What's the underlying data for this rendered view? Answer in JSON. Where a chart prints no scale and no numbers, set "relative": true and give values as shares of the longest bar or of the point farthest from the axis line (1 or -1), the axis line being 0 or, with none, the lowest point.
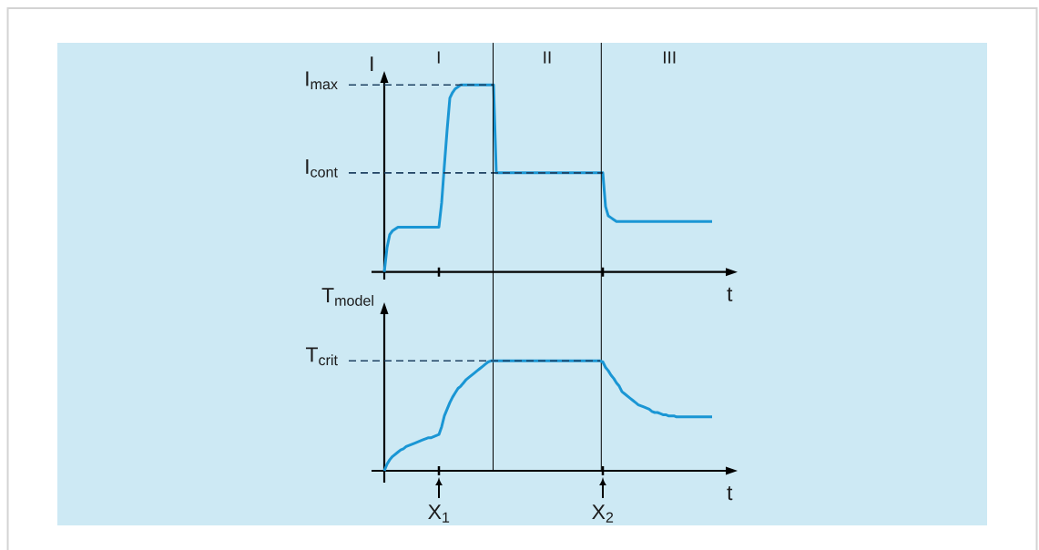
{
  "chart_data": [
    {
      "type": "line",
      "relative": true,
      "ylabel": "I",
      "xlabel": "t",
      "categories": [
        null,
        null,
        null,
        null,
        null,
        null,
        null,
        null,
        null,
        null,
        null,
        null,
        null,
        null,
        null,
        null,
        null,
        null,
        null,
        null,
        null,
        null,
        null,
        null,
        null,
        null,
        null,
        null,
        null,
        null,
        null,
        null,
        null,
        null,
        null,
        null,
        null,
        null,
        null,
        null,
        null,
        null,
        null,
        null,
        null,
        null,
        null,
        null,
        null,
        null,
        null,
        null,
        null,
        null,
        null,
        null,
        null,
        null,
        null,
        null,
        null,
        null,
        null,
        null,
        null,
        null,
        null,
        null,
        null,
        null,
        null,
        null,
        null,
        null,
        null,
        null,
        null,
        null,
        null,
        null,
        null,
        null,
        null,
        null,
        null,
        null,
        null,
        null,
        null,
        null,
        null,
        null,
        null,
        null,
        null,
        null,
        null,
        null,
        null,
        null,
        null,
        null,
        null,
        null,
        null,
        null,
        null,
        null,
        null,
        null,
        null,
        null,
        null,
        null,
        null,
        null,
        null,
        null,
        null,
        null,
        null
      ],
      "series": [
        {
          "color": "#1a96d4",
          "values": [
            0,
            0.13,
            0.2,
            0.22,
            0.23,
            0.24,
            0.24,
            0.24,
            0.24,
            0.24,
            0.24,
            0.24,
            0.24,
            0.24,
            0.24,
            0.24,
            0.24,
            0.24,
            0.24,
            0.24,
            0.24,
            0.37,
            0.57,
            0.76,
            0.93,
            0.96,
            0.98,
            0.99,
            1,
            1,
            1,
            1,
            1,
            1,
            1,
            1,
            1,
            1,
            1,
            1,
            1,
            0.53,
            0.53,
            0.53,
            0.53,
            0.53,
            0.53,
            0.53,
            0.53,
            0.53,
            0.53,
            0.53,
            0.53,
            0.53,
            0.53,
            0.53,
            0.53,
            0.53,
            0.53,
            0.53,
            0.53,
            0.53,
            0.53,
            0.53,
            0.53,
            0.53,
            0.53,
            0.53,
            0.53,
            0.53,
            0.53,
            0.53,
            0.53,
            0.53,
            0.53,
            0.53,
            0.53,
            0.53,
            0.53,
            0.53,
            0.53,
            0.35,
            0.3,
            0.29,
            0.28,
            0.27,
            0.27,
            0.27,
            0.27,
            0.27,
            0.27,
            0.27,
            0.27,
            0.27,
            0.27,
            0.27,
            0.27,
            0.27,
            0.27,
            0.27,
            0.27,
            0.27,
            0.27,
            0.27,
            0.27,
            0.27,
            0.27,
            0.27,
            0.27,
            0.27,
            0.27,
            0.27,
            0.27,
            0.27,
            0.27,
            0.27,
            0.27,
            0.27,
            0.27,
            0.27,
            0.27
          ]
        }
      ],
      "ref_lines": [
        {
          "axis": "y",
          "value": 1,
          "label": "I$_{max}$",
          "color": "#1f4263",
          "line_style": "dashed"
        },
        {
          "axis": "y",
          "value": 0.53,
          "label": "I$_{cont}$",
          "color": "#1f4263",
          "line_style": "dashed"
        }
      ],
      "annotations": [
        "I",
        "II",
        "III"
      ]
    },
    {
      "type": "line",
      "relative": true,
      "ylabel": "T$_{model}$",
      "xlabel": "t",
      "tick_labels": "x",
      "categories": [
        null,
        null,
        null,
        null,
        null,
        null,
        null,
        null,
        null,
        null,
        null,
        null,
        null,
        null,
        null,
        null,
        null,
        null,
        null,
        null,
        "X$_{1}$",
        null,
        null,
        null,
        null,
        null,
        null,
        null,
        null,
        null,
        null,
        null,
        null,
        null,
        null,
        null,
        null,
        null,
        null,
        null,
        null,
        null,
        null,
        null,
        null,
        null,
        null,
        null,
        null,
        null,
        null,
        null,
        null,
        null,
        null,
        null,
        null,
        null,
        null,
        null,
        null,
        null,
        null,
        null,
        null,
        null,
        null,
        null,
        null,
        null,
        null,
        null,
        null,
        null,
        null,
        null,
        null,
        null,
        null,
        null,
        "X$_{2}$",
        null,
        null,
        null,
        null,
        null,
        null,
        null,
        null,
        null,
        null,
        null,
        null,
        null,
        null,
        null,
        null,
        null,
        null,
        null,
        null,
        null,
        null,
        null,
        null,
        null,
        null,
        null,
        null,
        null,
        null,
        null,
        null,
        null,
        null,
        null,
        null,
        null,
        null,
        null,
        null
      ],
      "series": [
        {
          "color": "#1a96d4",
          "values": [
            0,
            0.06,
            0.1,
            0.13,
            0.15,
            0.17,
            0.19,
            0.2,
            0.22,
            0.23,
            0.24,
            0.25,
            0.26,
            0.27,
            0.28,
            0.29,
            0.3,
            0.3,
            0.31,
            0.32,
            0.33,
            0.4,
            0.5,
            0.56,
            0.62,
            0.67,
            0.71,
            0.75,
            0.77,
            0.8,
            0.83,
            0.85,
            0.87,
            0.89,
            0.91,
            0.93,
            0.95,
            0.97,
            0.99,
            1,
            1,
            1,
            1,
            1,
            1,
            1,
            1,
            1,
            1,
            1,
            1,
            1,
            1,
            1,
            1,
            1,
            1,
            1,
            1,
            1,
            1,
            1,
            1,
            1,
            1,
            1,
            1,
            1,
            1,
            1,
            1,
            1,
            1,
            1,
            1,
            1,
            1,
            1,
            1,
            1,
            0.99,
            0.94,
            0.91,
            0.87,
            0.84,
            0.8,
            0.77,
            0.72,
            0.7,
            0.68,
            0.66,
            0.64,
            0.62,
            0.6,
            0.59,
            0.58,
            0.57,
            0.56,
            0.54,
            0.53,
            0.53,
            0.52,
            0.51,
            0.51,
            0.5,
            0.5,
            0.5,
            0.49,
            0.49,
            0.49,
            0.49,
            0.49,
            0.49,
            0.49,
            0.49,
            0.49,
            0.49,
            0.49,
            0.49,
            0.49,
            0.49
          ]
        }
      ],
      "ref_lines": [
        {
          "axis": "y",
          "value": 1,
          "label": "T$_{crit}$",
          "color": "#1f4263",
          "line_style": "dashed"
        }
      ]
    }
  ]
}
